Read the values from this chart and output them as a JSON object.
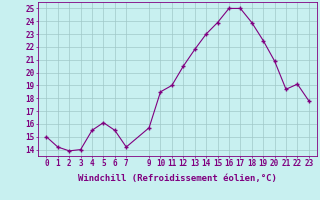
{
  "x": [
    0,
    1,
    2,
    3,
    4,
    5,
    6,
    7,
    9,
    10,
    11,
    12,
    13,
    14,
    15,
    16,
    17,
    18,
    19,
    20,
    21,
    22,
    23
  ],
  "y": [
    15,
    14.2,
    13.9,
    14.0,
    15.5,
    16.1,
    15.5,
    14.2,
    15.7,
    18.5,
    19.0,
    20.5,
    21.8,
    23.0,
    23.9,
    25.0,
    25.0,
    23.9,
    22.5,
    20.9,
    18.7,
    19.1,
    17.8
  ],
  "line_color": "#800080",
  "marker": "+",
  "bg_color": "#c8f0f0",
  "grid_color": "#a0c8c8",
  "xlabel": "Windchill (Refroidissement éolien,°C)",
  "xlabel_fontsize": 6.5,
  "tick_fontsize": 5.5,
  "ylim": [
    13.5,
    25.5
  ],
  "yticks": [
    14,
    15,
    16,
    17,
    18,
    19,
    20,
    21,
    22,
    23,
    24,
    25
  ],
  "xticks": [
    0,
    1,
    2,
    3,
    4,
    5,
    6,
    7,
    9,
    10,
    11,
    12,
    13,
    14,
    15,
    16,
    17,
    18,
    19,
    20,
    21,
    22,
    23
  ],
  "xlim": [
    -0.7,
    23.7
  ]
}
